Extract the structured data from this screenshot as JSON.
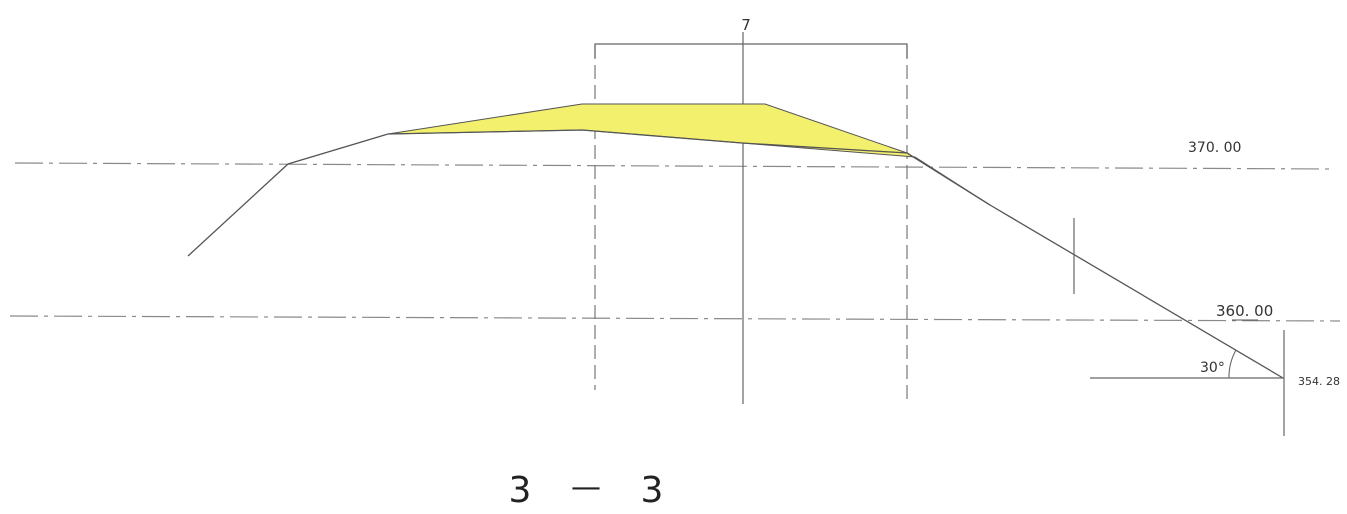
{
  "section": {
    "title_left": "3",
    "title_dash": "—",
    "title_right": "3"
  },
  "dimension_label": "7",
  "elevation_lines": {
    "upper": "370. 00",
    "lower": "360. 00"
  },
  "toe_elevation": "354. 28",
  "slope_angle": "30°",
  "colors": {
    "fill_area": "#f3f06e",
    "line": "#555555",
    "dash_line": "#8a8a8a"
  }
}
